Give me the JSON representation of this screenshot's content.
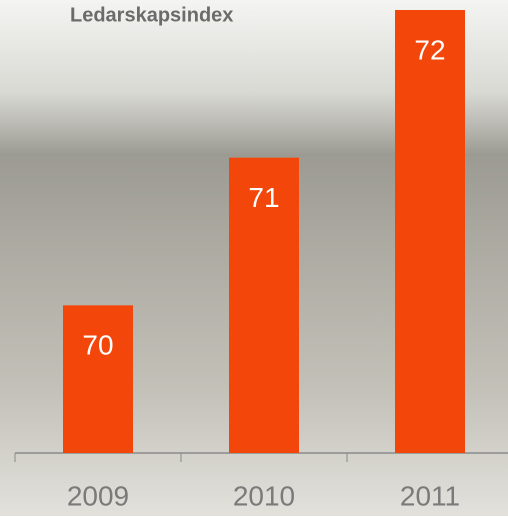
{
  "chart_data": {
    "type": "bar",
    "title": "Ledarskapsindex",
    "categories": [
      "2009",
      "2010",
      "2011"
    ],
    "values": [
      70,
      71,
      72
    ],
    "color": "#f2460a",
    "ylim": [
      69,
      72
    ],
    "grid": false
  }
}
